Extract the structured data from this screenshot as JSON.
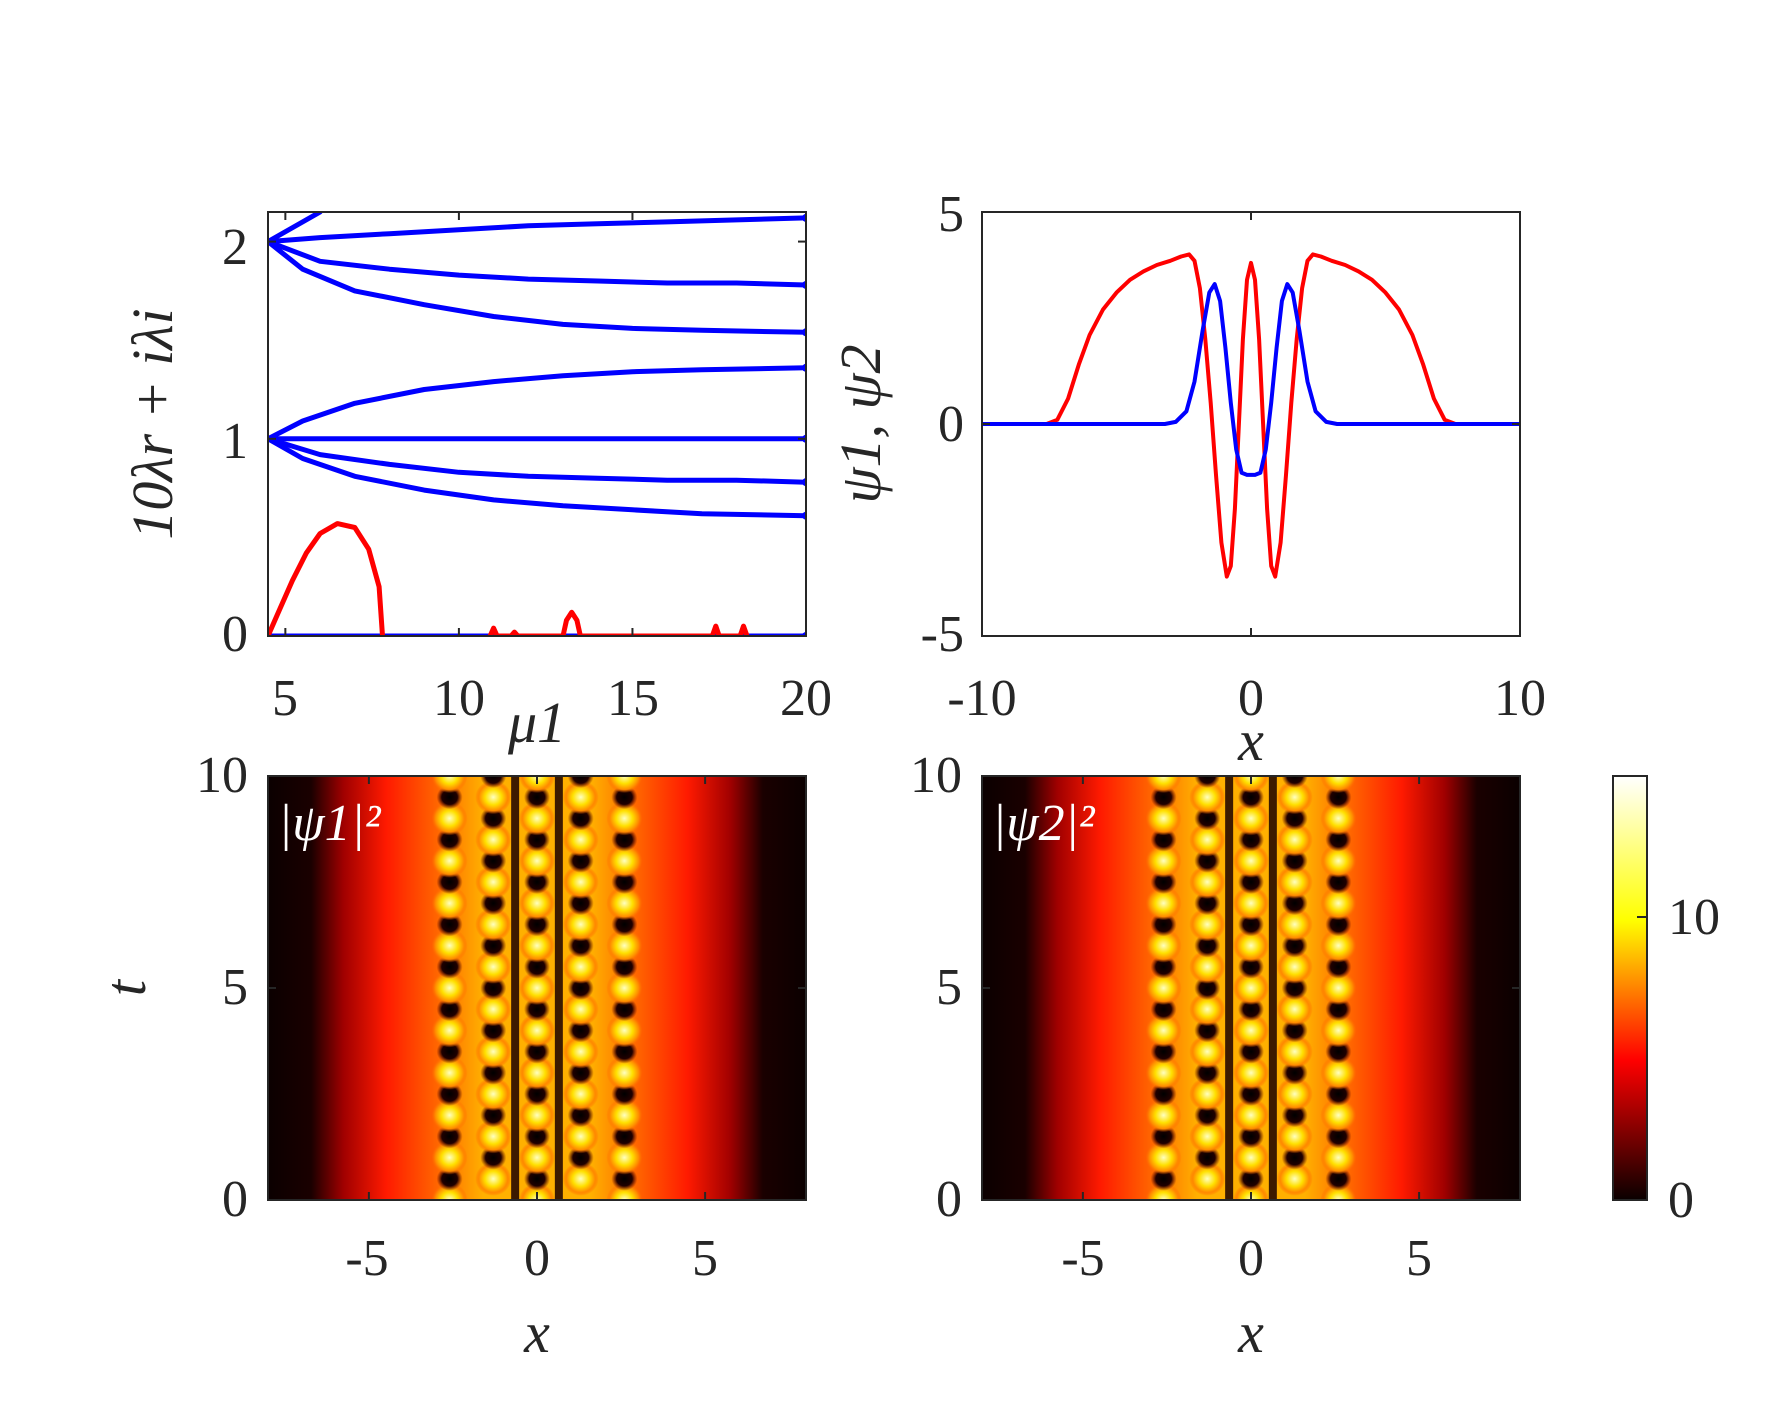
{
  "chart_data": [
    {
      "type": "line",
      "panel": "top-left",
      "xlabel": "μ1",
      "ylabel": "10λr + iλi",
      "xlim": [
        4.5,
        20
      ],
      "ylim": [
        0,
        2.15
      ],
      "xticks": [
        "5",
        "10",
        "15",
        "20"
      ],
      "yticks": [
        "0",
        "1",
        "2"
      ],
      "series": [
        {
          "color": "#0000ff",
          "points": [
            [
              4.5,
              2.0
            ],
            [
              6.0,
              2.15
            ]
          ]
        },
        {
          "color": "#0000ff",
          "points": [
            [
              4.5,
              2.0
            ],
            [
              6,
              2.02
            ],
            [
              8,
              2.04
            ],
            [
              10,
              2.06
            ],
            [
              12,
              2.08
            ],
            [
              14,
              2.09
            ],
            [
              16,
              2.1
            ],
            [
              18,
              2.11
            ],
            [
              20,
              2.12
            ]
          ]
        },
        {
          "color": "#0000ff",
          "points": [
            [
              4.5,
              2.0
            ],
            [
              6,
              1.9
            ],
            [
              8,
              1.86
            ],
            [
              10,
              1.83
            ],
            [
              12,
              1.81
            ],
            [
              14,
              1.8
            ],
            [
              16,
              1.79
            ],
            [
              18,
              1.79
            ],
            [
              20,
              1.78
            ]
          ]
        },
        {
          "color": "#0000ff",
          "points": [
            [
              4.5,
              2.0
            ],
            [
              5.5,
              1.86
            ],
            [
              7,
              1.75
            ],
            [
              9,
              1.68
            ],
            [
              11,
              1.62
            ],
            [
              13,
              1.58
            ],
            [
              15,
              1.56
            ],
            [
              17,
              1.55
            ],
            [
              20,
              1.54
            ]
          ]
        },
        {
          "color": "#0000ff",
          "points": [
            [
              4.5,
              1.0
            ],
            [
              5.5,
              1.09
            ],
            [
              7,
              1.18
            ],
            [
              9,
              1.25
            ],
            [
              11,
              1.29
            ],
            [
              13,
              1.32
            ],
            [
              15,
              1.34
            ],
            [
              17,
              1.35
            ],
            [
              20,
              1.36
            ]
          ]
        },
        {
          "color": "#0000ff",
          "points": [
            [
              4.5,
              1.0
            ],
            [
              20,
              1.0
            ]
          ]
        },
        {
          "color": "#0000ff",
          "points": [
            [
              4.5,
              1.0
            ],
            [
              6,
              0.92
            ],
            [
              8,
              0.87
            ],
            [
              10,
              0.83
            ],
            [
              12,
              0.81
            ],
            [
              14,
              0.8
            ],
            [
              16,
              0.79
            ],
            [
              18,
              0.79
            ],
            [
              20,
              0.78
            ]
          ]
        },
        {
          "color": "#0000ff",
          "points": [
            [
              4.5,
              1.0
            ],
            [
              5.5,
              0.9
            ],
            [
              7,
              0.81
            ],
            [
              9,
              0.74
            ],
            [
              11,
              0.69
            ],
            [
              13,
              0.66
            ],
            [
              15,
              0.64
            ],
            [
              17,
              0.62
            ],
            [
              20,
              0.61
            ]
          ]
        },
        {
          "color": "#0000ff",
          "points": [
            [
              4.5,
              0.0
            ],
            [
              20,
              0.0
            ]
          ]
        },
        {
          "color": "#ff0000",
          "points": [
            [
              4.5,
              0.0
            ],
            [
              4.8,
              0.12
            ],
            [
              5.2,
              0.28
            ],
            [
              5.6,
              0.42
            ],
            [
              6.0,
              0.52
            ],
            [
              6.5,
              0.57
            ],
            [
              7.0,
              0.55
            ],
            [
              7.4,
              0.44
            ],
            [
              7.7,
              0.25
            ],
            [
              7.8,
              0.0
            ]
          ]
        },
        {
          "color": "#ff0000",
          "points": [
            [
              10.9,
              0.0
            ],
            [
              11.0,
              0.04
            ],
            [
              11.1,
              0.0
            ],
            [
              11.5,
              0.0
            ],
            [
              11.6,
              0.02
            ],
            [
              11.7,
              0.0
            ],
            [
              13.0,
              0.0
            ],
            [
              13.1,
              0.08
            ],
            [
              13.25,
              0.12
            ],
            [
              13.4,
              0.08
            ],
            [
              13.5,
              0.0
            ],
            [
              17.3,
              0.0
            ],
            [
              17.4,
              0.05
            ],
            [
              17.5,
              0.0
            ],
            [
              18.1,
              0.0
            ],
            [
              18.2,
              0.05
            ],
            [
              18.3,
              0.0
            ]
          ]
        }
      ]
    },
    {
      "type": "line",
      "panel": "top-right",
      "xlabel": "x",
      "ylabel": "ψ1, ψ2",
      "xlim": [
        -10,
        10
      ],
      "ylim": [
        -5,
        5
      ],
      "xticks": [
        "-10",
        "0",
        "10"
      ],
      "yticks": [
        "-5",
        "0",
        "5"
      ],
      "series": [
        {
          "name": "ψ1",
          "color": "#ff0000",
          "points": [
            [
              -10,
              0
            ],
            [
              -7.6,
              0
            ],
            [
              -7.2,
              0.1
            ],
            [
              -6.8,
              0.6
            ],
            [
              -6.4,
              1.4
            ],
            [
              -6,
              2.1
            ],
            [
              -5.5,
              2.7
            ],
            [
              -5,
              3.1
            ],
            [
              -4.5,
              3.4
            ],
            [
              -4,
              3.6
            ],
            [
              -3.5,
              3.75
            ],
            [
              -3,
              3.85
            ],
            [
              -2.6,
              3.95
            ],
            [
              -2.3,
              4.0
            ],
            [
              -2.1,
              3.85
            ],
            [
              -1.9,
              3.2
            ],
            [
              -1.7,
              2.0
            ],
            [
              -1.5,
              0.5
            ],
            [
              -1.3,
              -1.2
            ],
            [
              -1.1,
              -2.8
            ],
            [
              -0.9,
              -3.6
            ],
            [
              -0.75,
              -3.35
            ],
            [
              -0.6,
              -2.0
            ],
            [
              -0.45,
              0.0
            ],
            [
              -0.3,
              2.0
            ],
            [
              -0.15,
              3.4
            ],
            [
              0,
              3.8
            ],
            [
              0.15,
              3.4
            ],
            [
              0.3,
              2.0
            ],
            [
              0.45,
              0.0
            ],
            [
              0.6,
              -2.0
            ],
            [
              0.75,
              -3.35
            ],
            [
              0.9,
              -3.6
            ],
            [
              1.1,
              -2.8
            ],
            [
              1.3,
              -1.2
            ],
            [
              1.5,
              0.5
            ],
            [
              1.7,
              2.0
            ],
            [
              1.9,
              3.2
            ],
            [
              2.1,
              3.85
            ],
            [
              2.3,
              4.0
            ],
            [
              2.6,
              3.95
            ],
            [
              3,
              3.85
            ],
            [
              3.5,
              3.75
            ],
            [
              4,
              3.6
            ],
            [
              4.5,
              3.4
            ],
            [
              5,
              3.1
            ],
            [
              5.5,
              2.7
            ],
            [
              6,
              2.1
            ],
            [
              6.4,
              1.4
            ],
            [
              6.8,
              0.6
            ],
            [
              7.2,
              0.1
            ],
            [
              7.6,
              0
            ],
            [
              10,
              0
            ]
          ]
        },
        {
          "name": "ψ2",
          "color": "#0000ff",
          "points": [
            [
              -10,
              0
            ],
            [
              -3.2,
              0
            ],
            [
              -2.8,
              0.05
            ],
            [
              -2.4,
              0.3
            ],
            [
              -2.1,
              1.0
            ],
            [
              -1.8,
              2.2
            ],
            [
              -1.55,
              3.1
            ],
            [
              -1.35,
              3.3
            ],
            [
              -1.15,
              2.9
            ],
            [
              -0.95,
              1.8
            ],
            [
              -0.75,
              0.5
            ],
            [
              -0.55,
              -0.6
            ],
            [
              -0.35,
              -1.15
            ],
            [
              -0.15,
              -1.2
            ],
            [
              0,
              -1.2
            ],
            [
              0.15,
              -1.2
            ],
            [
              0.35,
              -1.15
            ],
            [
              0.55,
              -0.6
            ],
            [
              0.75,
              0.5
            ],
            [
              0.95,
              1.8
            ],
            [
              1.15,
              2.9
            ],
            [
              1.35,
              3.3
            ],
            [
              1.55,
              3.1
            ],
            [
              1.8,
              2.2
            ],
            [
              2.1,
              1.0
            ],
            [
              2.4,
              0.3
            ],
            [
              2.8,
              0.05
            ],
            [
              3.2,
              0
            ],
            [
              10,
              0
            ]
          ]
        }
      ]
    },
    {
      "type": "heatmap",
      "panel": "bottom-left",
      "annotation": "|ψ1|²",
      "xlabel": "x",
      "ylabel": "t",
      "xlim": [
        -8,
        8
      ],
      "ylim": [
        0,
        10
      ],
      "xticks": [
        "-5",
        "0",
        "5"
      ],
      "yticks": [
        "0",
        "5",
        "10"
      ]
    },
    {
      "type": "heatmap",
      "panel": "bottom-right",
      "annotation": "|ψ2|²",
      "xlabel": "x",
      "xlim": [
        -8,
        8
      ],
      "ylim": [
        0,
        10
      ],
      "xticks": [
        "-5",
        "0",
        "5"
      ],
      "yticks": [
        "0",
        "5",
        "10"
      ]
    }
  ],
  "colorbar": {
    "colormap": "hot",
    "range": [
      0,
      15
    ],
    "ticks": [
      "0",
      "10"
    ]
  }
}
